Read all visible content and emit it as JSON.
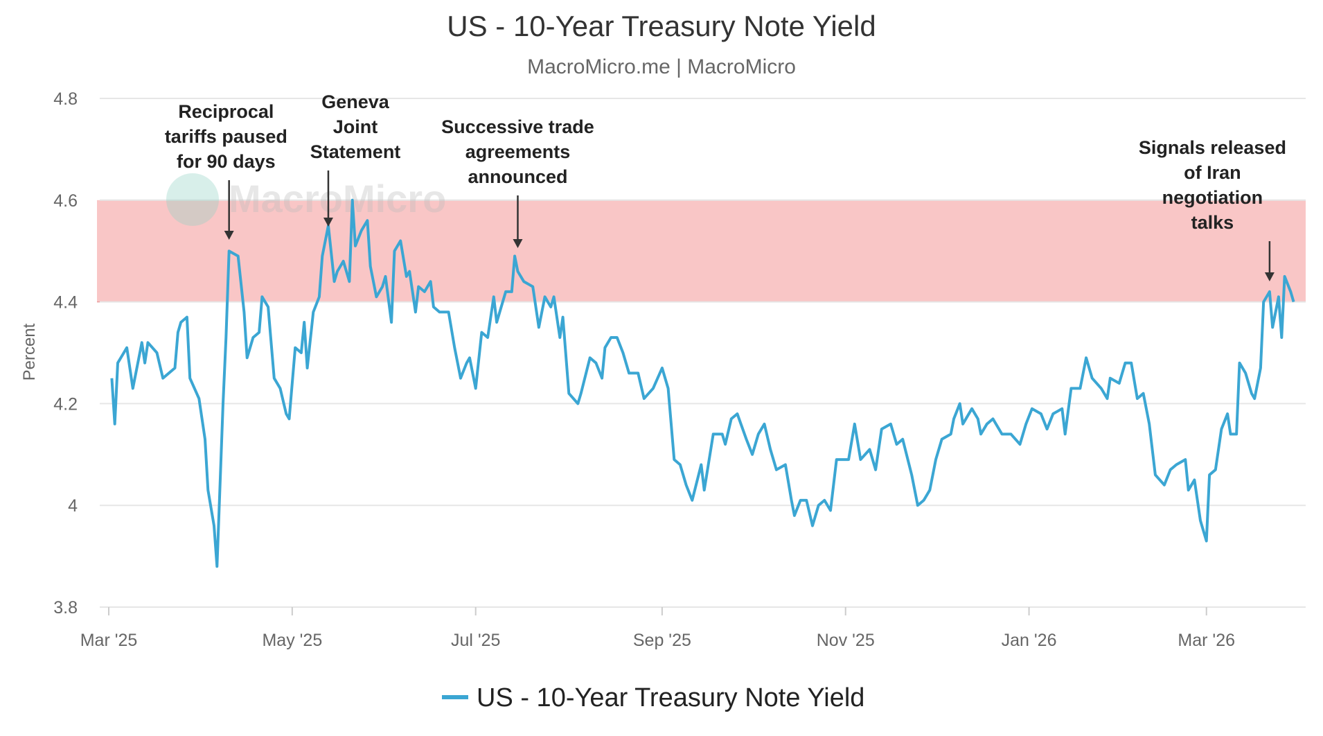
{
  "chart_data": {
    "type": "line",
    "title": "US - 10-Year Treasury Note Yield",
    "subtitle": "MacroMicro.me | MacroMicro",
    "watermark": "MacroMicro",
    "ylabel": "Percent",
    "xlabel": "",
    "x_unit": "days since 2025-03-01",
    "xlim": [
      -3,
      398
    ],
    "ylim": [
      3.8,
      4.8
    ],
    "yticks": [
      4.8,
      4.6,
      4.4,
      4.2,
      4.0,
      3.8
    ],
    "ytick_labels": [
      "4.8",
      "4.6",
      "4.4",
      "4.2",
      "4",
      "3.8"
    ],
    "xticks": [
      0,
      61,
      122,
      184,
      245,
      306,
      365
    ],
    "xtick_labels": [
      "Mar '25",
      "May '25",
      "Jul '25",
      "Sep '25",
      "Nov '25",
      "Jan '26",
      "Mar '26"
    ],
    "grid": true,
    "legend_position": "bottom-center",
    "band": {
      "from": 4.4,
      "to": 4.6,
      "color": "#f9c6c6"
    },
    "colors": {
      "line": "#3ba6d3",
      "grid": "#e6e6e6",
      "arrow": "#333333"
    },
    "series": [
      {
        "name": "US - 10-Year Treasury Note Yield",
        "x": [
          1,
          2,
          3,
          6,
          8,
          11,
          12,
          13,
          16,
          18,
          22,
          23,
          24,
          26,
          27,
          30,
          32,
          33,
          35,
          36,
          38,
          39,
          40,
          43,
          45,
          46,
          48,
          50,
          51,
          53,
          55,
          57,
          59,
          60,
          62,
          64,
          65,
          66,
          68,
          70,
          71,
          73,
          75,
          76,
          78,
          80,
          81,
          82,
          84,
          86,
          87,
          89,
          91,
          92,
          94,
          95,
          97,
          99,
          100,
          102,
          103,
          105,
          107,
          108,
          110,
          113,
          115,
          117,
          119,
          120,
          122,
          124,
          126,
          128,
          129,
          132,
          134,
          135,
          136,
          138,
          141,
          143,
          145,
          147,
          148,
          150,
          151,
          153,
          156,
          157,
          160,
          162,
          164,
          165,
          167,
          169,
          171,
          173,
          176,
          178,
          181,
          184,
          186,
          188,
          190,
          192,
          194,
          197,
          198,
          201,
          204,
          205,
          207,
          209,
          212,
          214,
          216,
          218,
          220,
          222,
          225,
          227,
          228,
          230,
          232,
          234,
          236,
          238,
          240,
          242,
          244,
          246,
          248,
          250,
          253,
          255,
          257,
          260,
          262,
          264,
          267,
          269,
          271,
          273,
          275,
          277,
          280,
          281,
          283,
          284,
          287,
          289,
          290,
          292,
          294,
          297,
          300,
          303,
          305,
          307,
          310,
          312,
          314,
          317,
          318,
          320,
          323,
          325,
          327,
          330,
          332,
          333,
          336,
          338,
          340,
          342,
          344,
          346,
          348,
          351,
          353,
          355,
          358,
          359,
          361,
          363,
          365,
          366,
          368,
          370,
          372,
          373,
          375,
          376,
          378,
          380,
          381,
          383,
          384,
          386,
          387,
          389,
          390,
          391,
          393,
          394
        ],
        "y": [
          4.25,
          4.16,
          4.28,
          4.31,
          4.23,
          4.32,
          4.28,
          4.32,
          4.3,
          4.25,
          4.27,
          4.34,
          4.36,
          4.37,
          4.25,
          4.21,
          4.13,
          4.03,
          3.96,
          3.88,
          4.2,
          4.33,
          4.5,
          4.49,
          4.38,
          4.29,
          4.33,
          4.34,
          4.41,
          4.39,
          4.25,
          4.23,
          4.18,
          4.17,
          4.31,
          4.3,
          4.36,
          4.27,
          4.38,
          4.41,
          4.49,
          4.55,
          4.44,
          4.46,
          4.48,
          4.44,
          4.6,
          4.51,
          4.54,
          4.56,
          4.47,
          4.41,
          4.43,
          4.45,
          4.36,
          4.5,
          4.52,
          4.45,
          4.46,
          4.38,
          4.43,
          4.42,
          4.44,
          4.39,
          4.38,
          4.38,
          4.31,
          4.25,
          4.28,
          4.29,
          4.23,
          4.34,
          4.33,
          4.41,
          4.36,
          4.42,
          4.42,
          4.49,
          4.46,
          4.44,
          4.43,
          4.35,
          4.41,
          4.39,
          4.41,
          4.33,
          4.37,
          4.22,
          4.2,
          4.22,
          4.29,
          4.28,
          4.25,
          4.31,
          4.33,
          4.33,
          4.3,
          4.26,
          4.26,
          4.21,
          4.23,
          4.27,
          4.23,
          4.09,
          4.08,
          4.04,
          4.01,
          4.08,
          4.03,
          4.14,
          4.14,
          4.12,
          4.17,
          4.18,
          4.13,
          4.1,
          4.14,
          4.16,
          4.11,
          4.07,
          4.08,
          4.01,
          3.98,
          4.01,
          4.01,
          3.96,
          4.0,
          4.01,
          3.99,
          4.09,
          4.09,
          4.09,
          4.16,
          4.09,
          4.11,
          4.07,
          4.15,
          4.16,
          4.12,
          4.13,
          4.06,
          4.0,
          4.01,
          4.03,
          4.09,
          4.13,
          4.14,
          4.17,
          4.2,
          4.16,
          4.19,
          4.17,
          4.14,
          4.16,
          4.17,
          4.14,
          4.14,
          4.12,
          4.16,
          4.19,
          4.18,
          4.15,
          4.18,
          4.19,
          4.14,
          4.23,
          4.23,
          4.29,
          4.25,
          4.23,
          4.21,
          4.25,
          4.24,
          4.28,
          4.28,
          4.21,
          4.22,
          4.16,
          4.06,
          4.04,
          4.07,
          4.08,
          4.09,
          4.03,
          4.05,
          3.97,
          3.93,
          4.06,
          4.07,
          4.15,
          4.18,
          4.14,
          4.14,
          4.28,
          4.26,
          4.22,
          4.21,
          4.27,
          4.4,
          4.42,
          4.35,
          4.41,
          4.33,
          4.45,
          4.42,
          4.4
        ]
      }
    ],
    "annotations": [
      {
        "lines": [
          "Reciprocal",
          "tariffs paused",
          "for 90 days"
        ],
        "x": 40,
        "text_x": 39
      },
      {
        "lines": [
          "Geneva",
          "Joint",
          "Statement"
        ],
        "x": 73,
        "text_x": 82
      },
      {
        "lines": [
          "Successive trade",
          "agreements",
          "announced"
        ],
        "x": 136,
        "text_x": 136
      },
      {
        "lines": [
          "Signals released",
          "of Iran",
          "negotiation",
          "talks"
        ],
        "x": 386,
        "text_x": 367
      }
    ]
  }
}
